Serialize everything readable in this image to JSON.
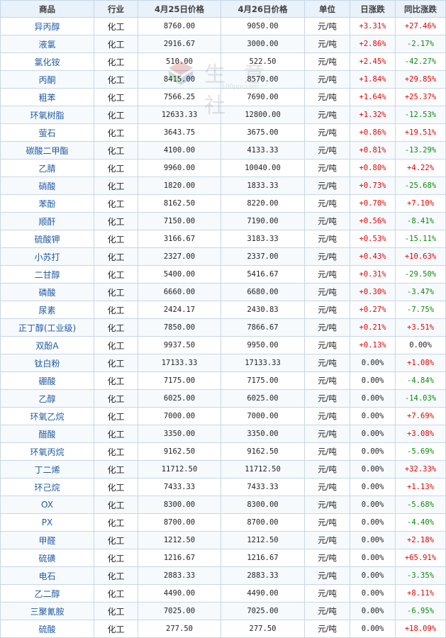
{
  "watermark": {
    "text": "生 意 社",
    "url": "100ppi.com"
  },
  "colors": {
    "up": "#e60000",
    "down": "#0a8a0a",
    "link": "#1f5aa3",
    "header_bg": "#e9f1fb",
    "border": "#c7d6e6"
  },
  "table": {
    "headers": {
      "product": "商品",
      "industry": "行业",
      "price_a": "4月25日价格",
      "price_b": "4月26日价格",
      "unit": "单位",
      "daily": "日涨跌",
      "yoy": "同比涨跌"
    },
    "rows": [
      {
        "product": "异丙醇",
        "industry": "化工",
        "price_a": "8760.00",
        "price_b": "9050.00",
        "unit": "元/吨",
        "daily": "+3.31%",
        "yoy": "+27.46%"
      },
      {
        "product": "液氯",
        "industry": "化工",
        "price_a": "2916.67",
        "price_b": "3000.00",
        "unit": "元/吨",
        "daily": "+2.86%",
        "yoy": "-2.17%"
      },
      {
        "product": "氯化铵",
        "industry": "化工",
        "price_a": "510.00",
        "price_b": "522.50",
        "unit": "元/吨",
        "daily": "+2.45%",
        "yoy": "-42.27%"
      },
      {
        "product": "丙酮",
        "industry": "化工",
        "price_a": "8415.00",
        "price_b": "8570.00",
        "unit": "元/吨",
        "daily": "+1.84%",
        "yoy": "+29.85%"
      },
      {
        "product": "粗苯",
        "industry": "化工",
        "price_a": "7566.25",
        "price_b": "7690.00",
        "unit": "元/吨",
        "daily": "+1.64%",
        "yoy": "+25.37%"
      },
      {
        "product": "环氧树脂",
        "industry": "化工",
        "price_a": "12633.33",
        "price_b": "12800.00",
        "unit": "元/吨",
        "daily": "+1.32%",
        "yoy": "-12.53%"
      },
      {
        "product": "萤石",
        "industry": "化工",
        "price_a": "3643.75",
        "price_b": "3675.00",
        "unit": "元/吨",
        "daily": "+0.86%",
        "yoy": "+19.51%"
      },
      {
        "product": "碳酸二甲酯",
        "industry": "化工",
        "price_a": "4100.00",
        "price_b": "4133.33",
        "unit": "元/吨",
        "daily": "+0.81%",
        "yoy": "-13.29%"
      },
      {
        "product": "乙腈",
        "industry": "化工",
        "price_a": "9960.00",
        "price_b": "10040.00",
        "unit": "元/吨",
        "daily": "+0.80%",
        "yoy": "+4.22%"
      },
      {
        "product": "硝酸",
        "industry": "化工",
        "price_a": "1820.00",
        "price_b": "1833.33",
        "unit": "元/吨",
        "daily": "+0.73%",
        "yoy": "-25.68%"
      },
      {
        "product": "苯酚",
        "industry": "化工",
        "price_a": "8162.50",
        "price_b": "8220.00",
        "unit": "元/吨",
        "daily": "+0.70%",
        "yoy": "+7.10%"
      },
      {
        "product": "顺酐",
        "industry": "化工",
        "price_a": "7150.00",
        "price_b": "7190.00",
        "unit": "元/吨",
        "daily": "+0.56%",
        "yoy": "-8.41%"
      },
      {
        "product": "硫酸钾",
        "industry": "化工",
        "price_a": "3166.67",
        "price_b": "3183.33",
        "unit": "元/吨",
        "daily": "+0.53%",
        "yoy": "-15.11%"
      },
      {
        "product": "小苏打",
        "industry": "化工",
        "price_a": "2327.00",
        "price_b": "2337.00",
        "unit": "元/吨",
        "daily": "+0.43%",
        "yoy": "+10.63%"
      },
      {
        "product": "二甘醇",
        "industry": "化工",
        "price_a": "5400.00",
        "price_b": "5416.67",
        "unit": "元/吨",
        "daily": "+0.31%",
        "yoy": "-29.50%"
      },
      {
        "product": "磷酸",
        "industry": "化工",
        "price_a": "6660.00",
        "price_b": "6680.00",
        "unit": "元/吨",
        "daily": "+0.30%",
        "yoy": "-3.47%"
      },
      {
        "product": "尿素",
        "industry": "化工",
        "price_a": "2424.17",
        "price_b": "2430.83",
        "unit": "元/吨",
        "daily": "+0.27%",
        "yoy": "-7.75%"
      },
      {
        "product": "正丁醇(工业级)",
        "industry": "化工",
        "price_a": "7850.00",
        "price_b": "7866.67",
        "unit": "元/吨",
        "daily": "+0.21%",
        "yoy": "+3.51%"
      },
      {
        "product": "双酚A",
        "industry": "化工",
        "price_a": "9937.50",
        "price_b": "9950.00",
        "unit": "元/吨",
        "daily": "+0.13%",
        "yoy": "0.00%"
      },
      {
        "product": "钛白粉",
        "industry": "化工",
        "price_a": "17133.33",
        "price_b": "17133.33",
        "unit": "元/吨",
        "daily": "0.00%",
        "yoy": "+1.08%"
      },
      {
        "product": "硼酸",
        "industry": "化工",
        "price_a": "7175.00",
        "price_b": "7175.00",
        "unit": "元/吨",
        "daily": "0.00%",
        "yoy": "-4.84%"
      },
      {
        "product": "乙醇",
        "industry": "化工",
        "price_a": "6025.00",
        "price_b": "6025.00",
        "unit": "元/吨",
        "daily": "0.00%",
        "yoy": "-14.03%"
      },
      {
        "product": "环氧乙烷",
        "industry": "化工",
        "price_a": "7000.00",
        "price_b": "7000.00",
        "unit": "元/吨",
        "daily": "0.00%",
        "yoy": "+7.69%"
      },
      {
        "product": "醋酸",
        "industry": "化工",
        "price_a": "3350.00",
        "price_b": "3350.00",
        "unit": "元/吨",
        "daily": "0.00%",
        "yoy": "+3.08%"
      },
      {
        "product": "环氧丙烷",
        "industry": "化工",
        "price_a": "9162.50",
        "price_b": "9162.50",
        "unit": "元/吨",
        "daily": "0.00%",
        "yoy": "-5.69%"
      },
      {
        "product": "丁二烯",
        "industry": "化工",
        "price_a": "11712.50",
        "price_b": "11712.50",
        "unit": "元/吨",
        "daily": "0.00%",
        "yoy": "+32.33%"
      },
      {
        "product": "环己烷",
        "industry": "化工",
        "price_a": "7433.33",
        "price_b": "7433.33",
        "unit": "元/吨",
        "daily": "0.00%",
        "yoy": "+1.13%"
      },
      {
        "product": "OX",
        "industry": "化工",
        "price_a": "8300.00",
        "price_b": "8300.00",
        "unit": "元/吨",
        "daily": "0.00%",
        "yoy": "-5.68%"
      },
      {
        "product": "PX",
        "industry": "化工",
        "price_a": "8700.00",
        "price_b": "8700.00",
        "unit": "元/吨",
        "daily": "0.00%",
        "yoy": "-4.40%"
      },
      {
        "product": "甲醛",
        "industry": "化工",
        "price_a": "1212.50",
        "price_b": "1212.50",
        "unit": "元/吨",
        "daily": "0.00%",
        "yoy": "+2.18%"
      },
      {
        "product": "硫磺",
        "industry": "化工",
        "price_a": "1216.67",
        "price_b": "1216.67",
        "unit": "元/吨",
        "daily": "0.00%",
        "yoy": "+65.91%"
      },
      {
        "product": "电石",
        "industry": "化工",
        "price_a": "2883.33",
        "price_b": "2883.33",
        "unit": "元/吨",
        "daily": "0.00%",
        "yoy": "-3.35%"
      },
      {
        "product": "乙二醇",
        "industry": "化工",
        "price_a": "4490.00",
        "price_b": "4490.00",
        "unit": "元/吨",
        "daily": "0.00%",
        "yoy": "+8.11%"
      },
      {
        "product": "三聚氰胺",
        "industry": "化工",
        "price_a": "7025.00",
        "price_b": "7025.00",
        "unit": "元/吨",
        "daily": "0.00%",
        "yoy": "-6.95%"
      },
      {
        "product": "硫酸",
        "industry": "化工",
        "price_a": "277.50",
        "price_b": "277.50",
        "unit": "元/吨",
        "daily": "0.00%",
        "yoy": "+18.09%"
      }
    ]
  }
}
